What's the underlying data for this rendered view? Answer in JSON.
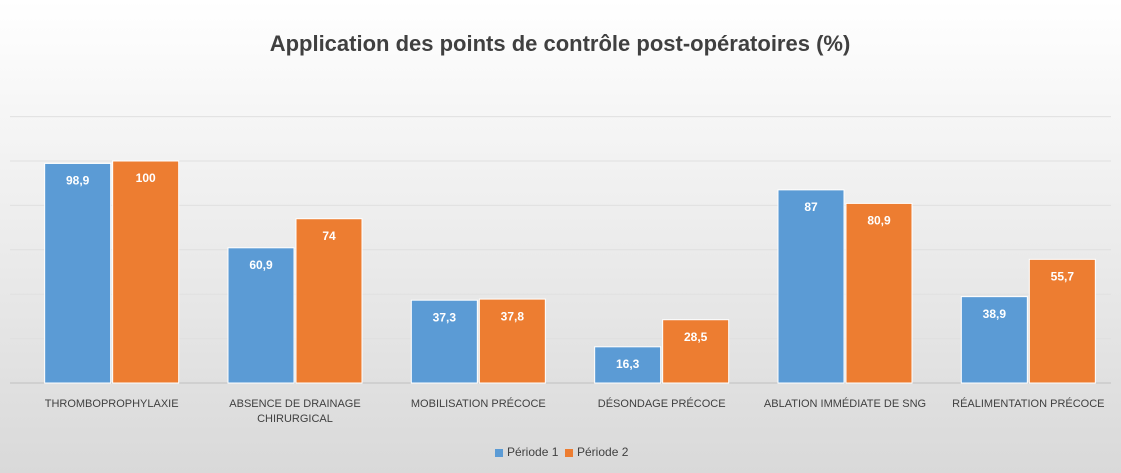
{
  "chart_data": {
    "type": "bar",
    "title": "Application des points de contrôle post-opératoires (%)",
    "categories": [
      "THROMBOPROPHYLAXIE",
      "ABSENCE DE DRAINAGE CHIRURGICAL",
      "MOBILISATION PRÉCOCE",
      "DÉSONDAGE PRÉCOCE",
      "ABLATION IMMÉDIATE DE SNG",
      "RÉALIMENTATION PRÉCOCE"
    ],
    "series": [
      {
        "name": "Période 1",
        "color": "#5b9bd5",
        "values": [
          98.9,
          60.9,
          37.3,
          16.3,
          87,
          38.9
        ],
        "value_labels": [
          "98,9",
          "60,9",
          "37,3",
          "16,3",
          "87",
          "38,9"
        ]
      },
      {
        "name": "Période 2",
        "color": "#ed7d31",
        "values": [
          100,
          74,
          37.8,
          28.5,
          80.9,
          55.7
        ],
        "value_labels": [
          "100",
          "74",
          "37,8",
          "28,5",
          "80,9",
          "55,7"
        ]
      }
    ],
    "ylim": [
      0,
      120
    ],
    "yticks": [
      0,
      20,
      40,
      60,
      80,
      100,
      120
    ],
    "grid": true,
    "legend": "bottom"
  }
}
